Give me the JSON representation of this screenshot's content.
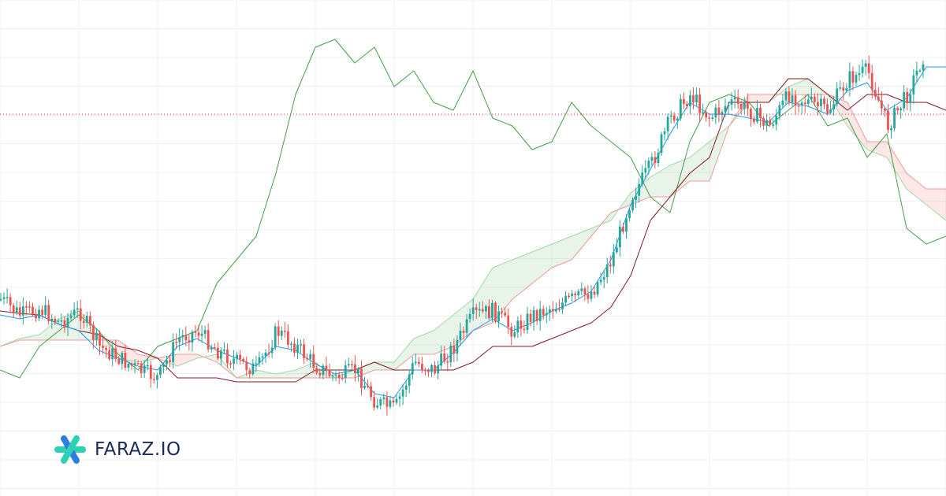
{
  "brand": {
    "name": "FARAZ.IO",
    "colors": {
      "navy": "#1e2a5a",
      "teal": "#2bd1b5",
      "blue": "#2a7fe0"
    }
  },
  "colors": {
    "bull": "#26a69a",
    "bear": "#ef5350",
    "tenkan": "#2196f3",
    "kijun": "#801922",
    "chikou": "#43a047",
    "span_a": "#a5d6a7",
    "span_b": "#ef9a9a",
    "cloud_bull": "rgba(67,160,71,0.12)",
    "cloud_bear": "rgba(244,67,54,0.12)",
    "price_line": "#f23645",
    "grid": "#eef0f3"
  },
  "chart_data": {
    "type": "line",
    "indicator": "ichimoku-cloud",
    "grid": true,
    "price_line": true,
    "x": [
      0,
      5,
      10,
      15,
      20,
      25,
      30,
      35,
      40,
      45,
      50,
      55,
      60,
      65,
      70,
      75,
      80,
      85,
      90,
      95,
      100,
      105,
      110,
      115,
      120,
      125,
      130,
      135,
      140,
      145,
      150,
      155,
      160,
      165,
      170,
      175,
      180,
      185,
      190,
      195,
      200,
      205,
      210,
      215,
      220,
      225,
      230,
      235,
      240
    ],
    "series": [
      {
        "key": "close",
        "values": [
          380,
          400,
          392,
          410,
          395,
          440,
          455,
          470,
          480,
          430,
          420,
          445,
          460,
          470,
          420,
          440,
          465,
          480,
          470,
          510,
          520,
          460,
          470,
          440,
          400,
          395,
          420,
          400,
          390,
          380,
          370,
          330,
          250,
          210,
          150,
          120,
          150,
          130,
          140,
          160,
          120,
          130,
          140,
          100,
          90,
          160,
          120,
          60,
          70
        ]
      },
      {
        "key": "tenkan",
        "values": [
          400,
          405,
          400,
          412,
          420,
          445,
          455,
          465,
          470,
          440,
          430,
          445,
          455,
          465,
          440,
          445,
          462,
          475,
          470,
          500,
          505,
          470,
          470,
          448,
          420,
          405,
          420,
          410,
          395,
          385,
          370,
          330,
          260,
          215,
          170,
          130,
          145,
          145,
          150,
          155,
          130,
          135,
          145,
          115,
          105,
          140,
          125,
          85,
          85
        ]
      },
      {
        "key": "kijun",
        "values": [
          395,
          398,
          400,
          412,
          420,
          425,
          440,
          445,
          455,
          480,
          480,
          480,
          485,
          485,
          485,
          485,
          470,
          470,
          470,
          460,
          470,
          470,
          470,
          470,
          460,
          440,
          440,
          440,
          430,
          420,
          410,
          390,
          350,
          280,
          250,
          220,
          200,
          130,
          130,
          130,
          100,
          100,
          120,
          140,
          120,
          120,
          130,
          130,
          140
        ]
      },
      {
        "key": "chikou",
        "values": [
          470,
          480,
          440,
          420,
          400,
          420,
          450,
          470,
          440,
          430,
          420,
          360,
          330,
          300,
          220,
          120,
          60,
          50,
          80,
          60,
          110,
          90,
          130,
          140,
          90,
          150,
          160,
          190,
          180,
          130,
          160,
          180,
          200,
          250,
          270,
          180,
          130,
          120,
          130,
          160,
          140,
          120,
          160,
          150,
          200,
          170,
          290,
          310,
          300
        ]
      },
      {
        "key": "span_a",
        "values": [
          440,
          430,
          425,
          405,
          395,
          420,
          455,
          460,
          455,
          465,
          455,
          450,
          480,
          470,
          475,
          470,
          460,
          480,
          470,
          460,
          460,
          430,
          420,
          400,
          380,
          340,
          330,
          320,
          310,
          300,
          290,
          280,
          245,
          225,
          210,
          200,
          180,
          160,
          130,
          130,
          110,
          100,
          120,
          160,
          190,
          200,
          240,
          260,
          280
        ]
      },
      {
        "key": "span_b",
        "values": [
          440,
          432,
          432,
          432,
          432,
          432,
          432,
          450,
          455,
          450,
          450,
          460,
          480,
          480,
          480,
          480,
          480,
          480,
          480,
          470,
          470,
          450,
          450,
          440,
          420,
          410,
          380,
          360,
          340,
          330,
          300,
          270,
          260,
          250,
          250,
          230,
          230,
          160,
          120,
          120,
          120,
          120,
          120,
          130,
          180,
          180,
          220,
          240,
          240
        ]
      }
    ],
    "price_line_value": 145
  }
}
